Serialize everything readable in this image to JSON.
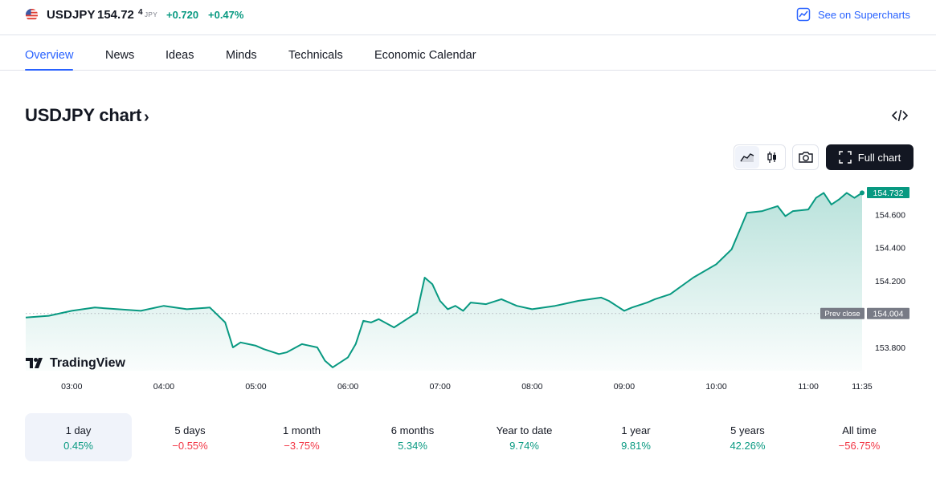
{
  "header": {
    "symbol": "USDJPY",
    "price": "154.72",
    "price_superscript": "4",
    "currency": "JPY",
    "change": "+0.720",
    "change_percent": "+0.47%",
    "supercharts_link": "See on Supercharts"
  },
  "tabs": [
    {
      "label": "Overview",
      "active": true
    },
    {
      "label": "News"
    },
    {
      "label": "Ideas"
    },
    {
      "label": "Minds"
    },
    {
      "label": "Technicals"
    },
    {
      "label": "Economic Calendar"
    }
  ],
  "chart_section": {
    "title": "USDJPY chart",
    "chevron": "›",
    "full_chart_label": "Full chart",
    "brand": "TradingView"
  },
  "colors": {
    "accent": "#2962ff",
    "positive": "#089981",
    "negative": "#f23645",
    "line": "#089981",
    "prev_close_badge": "#787b86"
  },
  "icons": [
    "flag-us-icon",
    "chart-icon",
    "code-embed-icon",
    "area-chart-icon",
    "candles-icon",
    "camera-icon",
    "fullscreen-icon",
    "tradingview-logo-icon"
  ],
  "chart_data": {
    "type": "area",
    "x_ticks": [
      "03:00",
      "04:00",
      "05:00",
      "06:00",
      "07:00",
      "08:00",
      "09:00",
      "10:00",
      "11:00",
      "11:35"
    ],
    "y_ticks": [
      "153.800",
      "154.200",
      "154.400",
      "154.600"
    ],
    "ylim": [
      153.66,
      154.78
    ],
    "last_price_label": "154.732",
    "last_price": 154.732,
    "prev_close_label": "Prev close",
    "prev_close_value_label": "154.004",
    "prev_close": 154.004,
    "grid": false,
    "series": [
      {
        "x": [
          "02:30",
          "02:45",
          "03:00",
          "03:15",
          "03:30",
          "03:45",
          "04:00",
          "04:15",
          "04:30",
          "04:40",
          "04:45",
          "04:50",
          "05:00",
          "05:05",
          "05:15",
          "05:20",
          "05:30",
          "05:40",
          "05:45",
          "05:50",
          "06:00",
          "06:05",
          "06:10",
          "06:15",
          "06:20",
          "06:30",
          "06:45",
          "06:50",
          "06:55",
          "07:00",
          "07:05",
          "07:10",
          "07:15",
          "07:20",
          "07:30",
          "07:40",
          "07:45",
          "07:50",
          "08:00",
          "08:15",
          "08:30",
          "08:45",
          "08:50",
          "09:00",
          "09:05",
          "09:15",
          "09:20",
          "09:30",
          "09:45",
          "10:00",
          "10:10",
          "10:15",
          "10:20",
          "10:30",
          "10:40",
          "10:45",
          "10:50",
          "11:00",
          "11:05",
          "11:10",
          "11:15",
          "11:20",
          "11:25",
          "11:30",
          "11:35"
        ],
        "y": [
          153.98,
          153.99,
          154.02,
          154.04,
          154.03,
          154.02,
          154.05,
          154.03,
          154.04,
          153.95,
          153.8,
          153.83,
          153.81,
          153.79,
          153.76,
          153.77,
          153.82,
          153.8,
          153.72,
          153.68,
          153.74,
          153.82,
          153.96,
          153.95,
          153.97,
          153.92,
          154.01,
          154.22,
          154.18,
          154.08,
          154.03,
          154.05,
          154.02,
          154.07,
          154.06,
          154.09,
          154.07,
          154.05,
          154.03,
          154.05,
          154.08,
          154.1,
          154.08,
          154.02,
          154.04,
          154.07,
          154.09,
          154.12,
          154.22,
          154.3,
          154.39,
          154.5,
          154.61,
          154.62,
          154.65,
          154.59,
          154.62,
          154.63,
          154.7,
          154.73,
          154.66,
          154.69,
          154.73,
          154.7,
          154.73
        ]
      }
    ]
  },
  "ranges": [
    {
      "label": "1 day",
      "value": "0.45%",
      "sign": "pos",
      "selected": true
    },
    {
      "label": "5 days",
      "value": "−0.55%",
      "sign": "neg"
    },
    {
      "label": "1 month",
      "value": "−3.75%",
      "sign": "neg"
    },
    {
      "label": "6 months",
      "value": "5.34%",
      "sign": "pos"
    },
    {
      "label": "Year to date",
      "value": "9.74%",
      "sign": "pos"
    },
    {
      "label": "1 year",
      "value": "9.81%",
      "sign": "pos"
    },
    {
      "label": "5 years",
      "value": "42.26%",
      "sign": "pos"
    },
    {
      "label": "All time",
      "value": "−56.75%",
      "sign": "neg"
    }
  ]
}
